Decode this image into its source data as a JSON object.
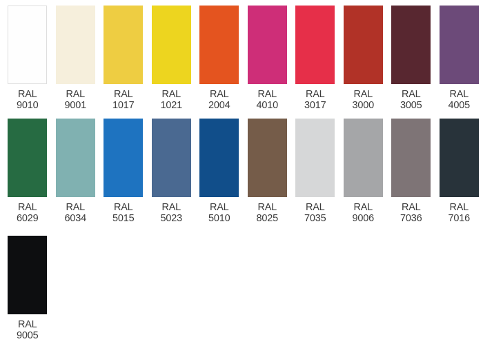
{
  "palette": {
    "label_prefix": "RAL",
    "text_color": "#3b3b3b",
    "background": "#ffffff",
    "swatches": [
      {
        "code": "9010",
        "hex": "#fefefe",
        "border": "#dedede"
      },
      {
        "code": "9001",
        "hex": "#f6efdc"
      },
      {
        "code": "1017",
        "hex": "#eecd42"
      },
      {
        "code": "1021",
        "hex": "#edd51f"
      },
      {
        "code": "2004",
        "hex": "#e4541f"
      },
      {
        "code": "4010",
        "hex": "#ce2e78"
      },
      {
        "code": "3017",
        "hex": "#e62f49"
      },
      {
        "code": "3000",
        "hex": "#b13227"
      },
      {
        "code": "3005",
        "hex": "#582730"
      },
      {
        "code": "4005",
        "hex": "#6c4a79"
      },
      {
        "code": "6029",
        "hex": "#266b42"
      },
      {
        "code": "6034",
        "hex": "#80b1b1"
      },
      {
        "code": "5015",
        "hex": "#1e73c0"
      },
      {
        "code": "5023",
        "hex": "#4a6991"
      },
      {
        "code": "5010",
        "hex": "#114e8a"
      },
      {
        "code": "8025",
        "hex": "#755c49"
      },
      {
        "code": "7035",
        "hex": "#d6d7d8"
      },
      {
        "code": "9006",
        "hex": "#a5a6a8"
      },
      {
        "code": "7036",
        "hex": "#7e7476"
      },
      {
        "code": "7016",
        "hex": "#28333a"
      },
      {
        "code": "9005",
        "hex": "#0d0e10"
      }
    ]
  },
  "chart_data": {
    "type": "table",
    "columns": [
      "ral_code",
      "swatch_color_hex"
    ],
    "rows": [
      [
        "RAL 9010",
        "#fefefe"
      ],
      [
        "RAL 9001",
        "#f6efdc"
      ],
      [
        "RAL 1017",
        "#eecd42"
      ],
      [
        "RAL 1021",
        "#edd51f"
      ],
      [
        "RAL 2004",
        "#e4541f"
      ],
      [
        "RAL 4010",
        "#ce2e78"
      ],
      [
        "RAL 3017",
        "#e62f49"
      ],
      [
        "RAL 3000",
        "#b13227"
      ],
      [
        "RAL 3005",
        "#582730"
      ],
      [
        "RAL 4005",
        "#6c4a79"
      ],
      [
        "RAL 6029",
        "#266b42"
      ],
      [
        "RAL 6034",
        "#80b1b1"
      ],
      [
        "RAL 5015",
        "#1e73c0"
      ],
      [
        "RAL 5023",
        "#4a6991"
      ],
      [
        "RAL 5010",
        "#114e8a"
      ],
      [
        "RAL 8025",
        "#755c49"
      ],
      [
        "RAL 7035",
        "#d6d7d8"
      ],
      [
        "RAL 9006",
        "#a5a6a8"
      ],
      [
        "RAL 7036",
        "#7e7476"
      ],
      [
        "RAL 7016",
        "#28333a"
      ],
      [
        "RAL 9005",
        "#0d0e10"
      ]
    ],
    "layout": {
      "grid_columns": 10,
      "row_counts": [
        10,
        10,
        1
      ],
      "legend": "none",
      "grid": "off"
    }
  }
}
